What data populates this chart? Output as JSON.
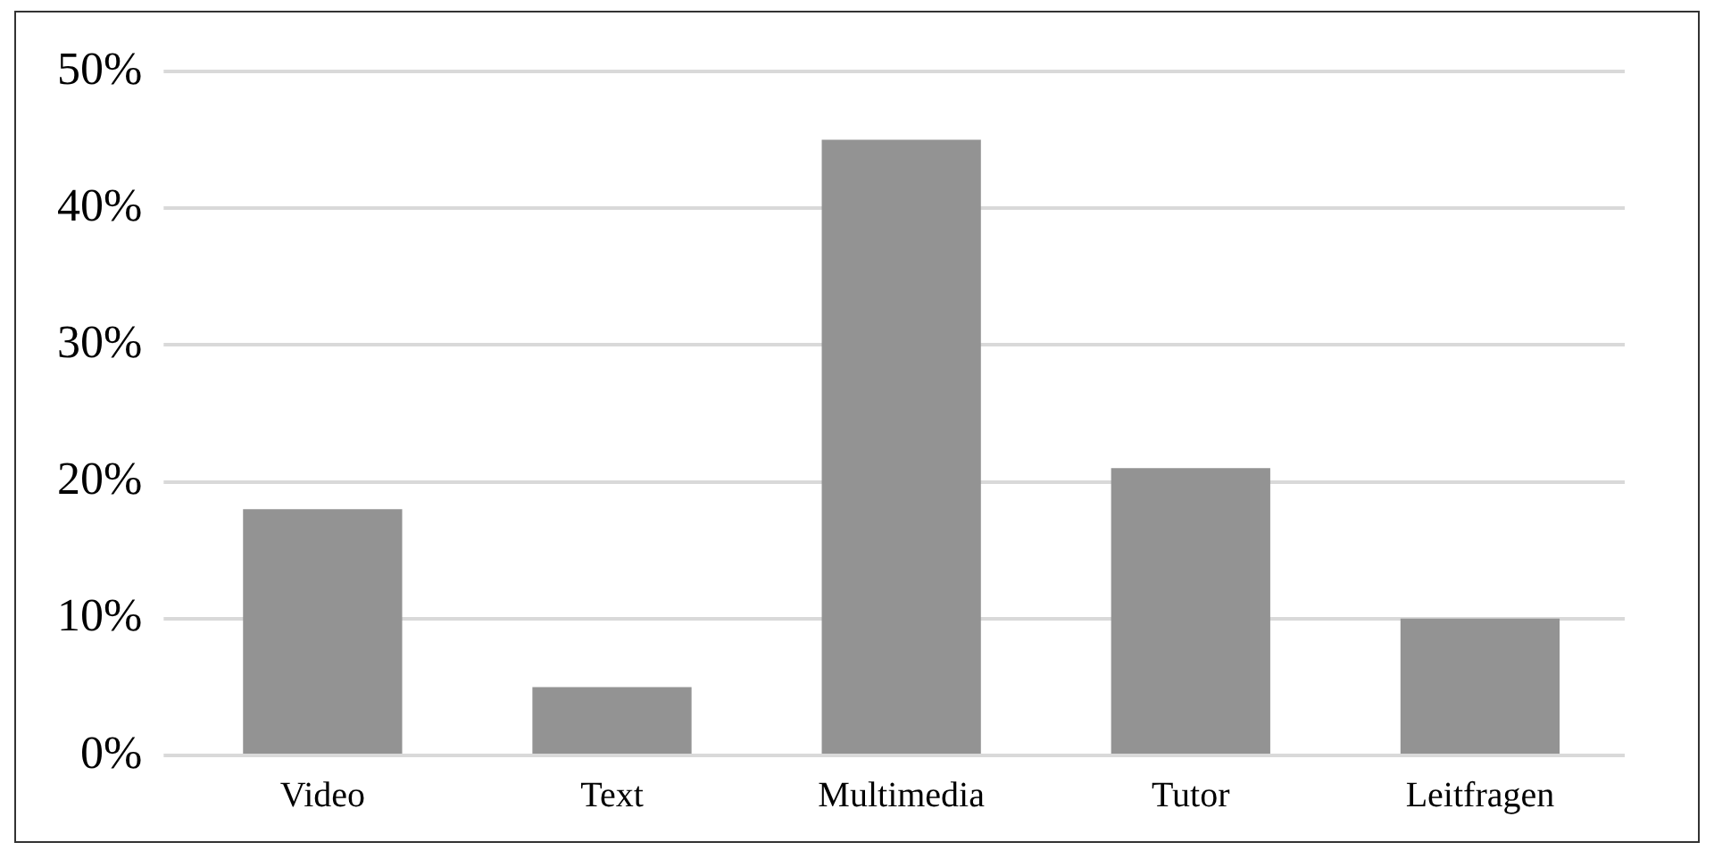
{
  "chart_data": {
    "type": "bar",
    "categories": [
      "Video",
      "Text",
      "Multimedia",
      "Tutor",
      "Leitfragen"
    ],
    "values": [
      18,
      5,
      45,
      21,
      10
    ],
    "color": "#939393",
    "ylim": [
      0,
      50
    ],
    "yticks": [
      {
        "value": 0,
        "label": "0%"
      },
      {
        "value": 10,
        "label": "10%"
      },
      {
        "value": 20,
        "label": "20%"
      },
      {
        "value": 30,
        "label": "30%"
      },
      {
        "value": 40,
        "label": "40%"
      },
      {
        "value": 50,
        "label": "50%"
      }
    ],
    "grid": "y"
  }
}
